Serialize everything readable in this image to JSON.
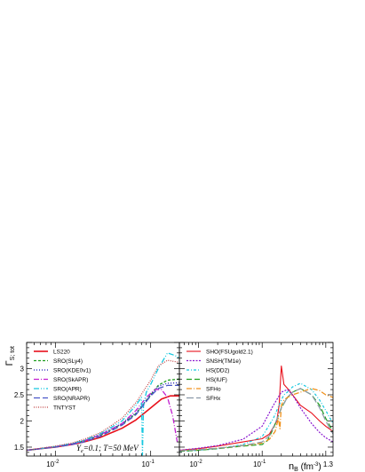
{
  "chart_data": [
    {
      "type": "line",
      "panel": "left",
      "ylabel": "Γ",
      "ylabel_sub": "S; tot",
      "xlabel": "",
      "x_scale": "log",
      "xlim": [
        0.005,
        0.2
      ],
      "ylim": [
        1.33,
        3.5
      ],
      "x_ticks": [
        {
          "value": 0.01,
          "label": "10",
          "exp": "-2"
        },
        {
          "value": 0.1,
          "label": "10",
          "exp": "-1"
        }
      ],
      "y_ticks": [
        {
          "value": 1.5,
          "label": "1.5"
        },
        {
          "value": 2,
          "label": "2"
        },
        {
          "value": 2.5,
          "label": "2.5"
        },
        {
          "value": 3,
          "label": "3"
        }
      ],
      "annotation": "Y  =0.1;  T=50 MeV",
      "annotation_parts": {
        "y": "Y",
        "y_sub": "e",
        "rest": "=0.1;  T=50 MeV"
      },
      "legend_position": "top-left",
      "series": [
        {
          "name": "LS220",
          "color": "#e8101b",
          "dash": "",
          "width": 1.6,
          "x": [
            0.005,
            0.007,
            0.01,
            0.015,
            0.02,
            0.03,
            0.05,
            0.07,
            0.1,
            0.13,
            0.16,
            0.2
          ],
          "y": [
            1.44,
            1.47,
            1.5,
            1.55,
            1.6,
            1.69,
            1.86,
            2.02,
            2.25,
            2.42,
            2.48,
            2.48
          ]
        },
        {
          "name": "SRO(SLy4)",
          "color": "#1f9e1f",
          "dash": "3,2",
          "width": 1.3,
          "x": [
            0.005,
            0.007,
            0.01,
            0.015,
            0.02,
            0.03,
            0.05,
            0.07,
            0.1,
            0.12,
            0.15,
            0.2
          ],
          "y": [
            1.44,
            1.47,
            1.51,
            1.56,
            1.62,
            1.73,
            1.94,
            2.14,
            2.5,
            2.68,
            2.78,
            2.8
          ]
        },
        {
          "name": "SRO(KDE0v1)",
          "color": "#1a1ab4",
          "dash": "1,2",
          "width": 1.3,
          "x": [
            0.005,
            0.007,
            0.01,
            0.015,
            0.02,
            0.03,
            0.05,
            0.07,
            0.1,
            0.12,
            0.15,
            0.2
          ],
          "y": [
            1.44,
            1.47,
            1.51,
            1.56,
            1.62,
            1.74,
            1.95,
            2.15,
            2.5,
            2.66,
            2.72,
            2.73
          ]
        },
        {
          "name": "SRO(SkAPR)",
          "color": "#c21fd0",
          "dash": "6,2,1,2",
          "width": 1.3,
          "x": [
            0.005,
            0.007,
            0.01,
            0.015,
            0.02,
            0.03,
            0.05,
            0.07,
            0.09,
            0.11,
            0.13,
            0.15,
            0.17,
            0.19
          ],
          "y": [
            1.44,
            1.47,
            1.51,
            1.56,
            1.62,
            1.74,
            1.95,
            2.2,
            2.45,
            2.6,
            2.6,
            2.45,
            2.1,
            1.6
          ]
        },
        {
          "name": "SRO(APR)",
          "color": "#17c8e0",
          "dash": "6,2,1,2,1,2",
          "width": 1.3,
          "x": [
            0.005,
            0.007,
            0.01,
            0.015,
            0.02,
            0.03,
            0.05,
            0.07,
            0.08,
            0.082,
            0.084,
            0.09,
            0.1,
            0.12,
            0.15,
            0.18,
            0.2
          ],
          "y": [
            1.44,
            1.47,
            1.51,
            1.57,
            1.63,
            1.76,
            2.0,
            2.3,
            2.45,
            1.35,
            2.3,
            2.55,
            2.7,
            3.0,
            3.3,
            3.25,
            3.2
          ]
        },
        {
          "name": "SRO(NRAPR)",
          "color": "#4a55c8",
          "dash": "7,3",
          "width": 1.3,
          "x": [
            0.005,
            0.007,
            0.01,
            0.015,
            0.02,
            0.03,
            0.05,
            0.07,
            0.1,
            0.12,
            0.15,
            0.2
          ],
          "y": [
            1.44,
            1.47,
            1.5,
            1.55,
            1.6,
            1.71,
            1.92,
            2.12,
            2.48,
            2.62,
            2.68,
            2.68
          ]
        },
        {
          "name": "TNTYST",
          "color": "#c04040",
          "dash": "1,1.5",
          "width": 1.2,
          "x": [
            0.005,
            0.007,
            0.01,
            0.015,
            0.02,
            0.03,
            0.05,
            0.07,
            0.1,
            0.12,
            0.15,
            0.2
          ],
          "y": [
            1.44,
            1.48,
            1.52,
            1.58,
            1.65,
            1.78,
            2.05,
            2.35,
            2.78,
            3.05,
            3.16,
            3.12
          ]
        }
      ]
    },
    {
      "type": "line",
      "panel": "right",
      "xlabel": "n",
      "xlabel_sub": "B",
      "xlabel_unit": " (fm",
      "xlabel_exp": "-3",
      "xlabel_close": ")",
      "x_scale": "log",
      "xlim": [
        0.005,
        1.3
      ],
      "ylim": [
        1.33,
        3.5
      ],
      "x_ticks": [
        {
          "value": 0.01,
          "label": "10",
          "exp": "-2"
        },
        {
          "value": 0.1,
          "label": "10",
          "exp": "-1"
        },
        {
          "value": 1.3,
          "label": "1.3",
          "exp": ""
        }
      ],
      "legend_position": "top-left",
      "series": [
        {
          "name": "SHO(FSUgold2.1)",
          "color": "#e8101b",
          "dash": "",
          "width": 1.1,
          "x": [
            0.005,
            0.01,
            0.02,
            0.05,
            0.1,
            0.13,
            0.17,
            0.185,
            0.2,
            0.22,
            0.26,
            0.3,
            0.4,
            0.6,
            0.8,
            1.0,
            1.3
          ],
          "y": [
            1.44,
            1.47,
            1.52,
            1.6,
            1.66,
            1.75,
            2.0,
            2.3,
            3.05,
            2.7,
            2.6,
            2.5,
            2.3,
            2.15,
            2.0,
            1.9,
            1.8
          ]
        },
        {
          "name": "SNSH(TM1e)",
          "color": "#8b1ad0",
          "dash": "2,1.5",
          "width": 1.2,
          "x": [
            0.005,
            0.01,
            0.02,
            0.05,
            0.1,
            0.15,
            0.2,
            0.25,
            0.3,
            0.4,
            0.6,
            0.8,
            1.0,
            1.3
          ],
          "y": [
            1.44,
            1.48,
            1.53,
            1.65,
            1.9,
            2.3,
            2.55,
            2.6,
            2.5,
            2.25,
            1.95,
            1.78,
            1.68,
            1.6
          ]
        },
        {
          "name": "HS(DD2)",
          "color": "#17c8e0",
          "dash": "3,2,1,2",
          "width": 1.2,
          "x": [
            0.005,
            0.01,
            0.02,
            0.05,
            0.1,
            0.15,
            0.2,
            0.22,
            0.25,
            0.3,
            0.4,
            0.6,
            0.8,
            1.0,
            1.3
          ],
          "y": [
            1.42,
            1.44,
            1.47,
            1.55,
            1.7,
            2.05,
            2.4,
            2.5,
            2.55,
            2.65,
            2.72,
            2.6,
            2.4,
            2.2,
            1.95
          ]
        },
        {
          "name": "HS(IUF)",
          "color": "#1f9e1f",
          "dash": "6,3",
          "width": 1.2,
          "x": [
            0.005,
            0.01,
            0.02,
            0.05,
            0.1,
            0.12,
            0.15,
            0.2,
            0.25,
            0.3,
            0.4,
            0.6,
            0.8,
            1.0,
            1.3
          ],
          "y": [
            1.42,
            1.44,
            1.47,
            1.52,
            1.55,
            1.62,
            1.85,
            2.25,
            2.45,
            2.55,
            2.62,
            2.5,
            2.3,
            2.05,
            1.8
          ]
        },
        {
          "name": "SFHo",
          "color": "#f0901a",
          "dash": "6,2,1,2",
          "width": 1.3,
          "x": [
            0.005,
            0.01,
            0.02,
            0.05,
            0.1,
            0.13,
            0.16,
            0.18,
            0.19,
            0.2,
            0.22,
            0.25,
            0.3,
            0.4,
            0.6,
            0.8,
            1.0,
            1.3
          ],
          "y": [
            1.43,
            1.45,
            1.48,
            1.53,
            1.58,
            1.65,
            1.8,
            2.05,
            1.85,
            2.3,
            2.4,
            2.45,
            2.5,
            2.55,
            2.62,
            2.58,
            2.5,
            2.45
          ]
        },
        {
          "name": "SFHx",
          "color": "#8a98a8",
          "dash": "8,3",
          "width": 1.2,
          "x": [
            0.005,
            0.01,
            0.02,
            0.05,
            0.1,
            0.13,
            0.16,
            0.2,
            0.25,
            0.3,
            0.4,
            0.6,
            0.8,
            1.0,
            1.3
          ],
          "y": [
            1.43,
            1.45,
            1.48,
            1.53,
            1.6,
            1.72,
            1.95,
            2.25,
            2.45,
            2.55,
            2.62,
            2.5,
            2.25,
            2.0,
            1.75
          ]
        }
      ]
    }
  ]
}
